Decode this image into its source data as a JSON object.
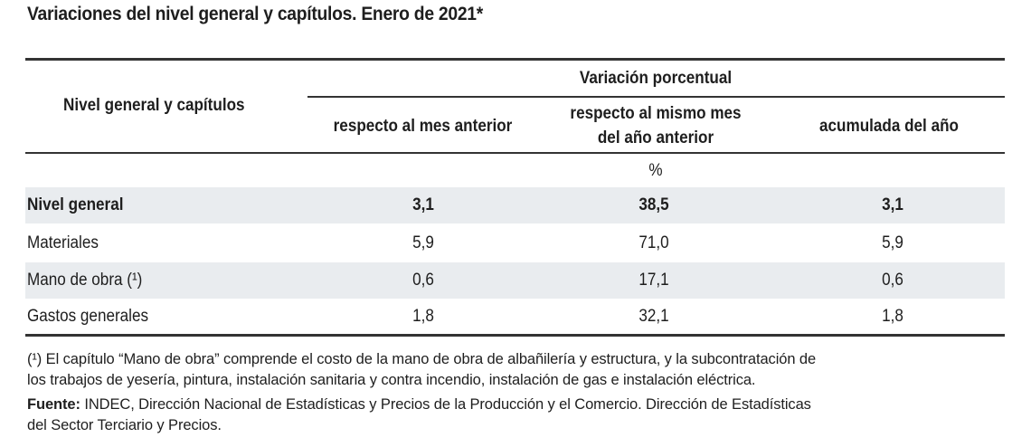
{
  "title": "Variaciones del nivel general y capítulos. Enero de 2021*",
  "header": {
    "row_label": "Nivel general y capítulos",
    "group": "Variación porcentual",
    "col1": "respecto al mes anterior",
    "col2_line1": "respecto al mismo mes",
    "col2_line2": "del año anterior",
    "col3": "acumulada del año",
    "unit": "%"
  },
  "rows": [
    {
      "label": "Nivel general",
      "v1": "3,1",
      "v2": "38,5",
      "v3": "3,1",
      "bold": true
    },
    {
      "label": "Materiales",
      "v1": "5,9",
      "v2": "71,0",
      "v3": "5,9"
    },
    {
      "label": "Mano de obra (¹)",
      "v1": "0,6",
      "v2": "17,1",
      "v3": "0,6"
    },
    {
      "label": "Gastos generales",
      "v1": "1,8",
      "v2": "32,1",
      "v3": "1,8"
    }
  ],
  "footnote": {
    "note_line1": "(¹) El capítulo “Mano de obra” comprende el costo de la mano de obra de albañilería y estructura, y la subcontratación de",
    "note_line2": "los trabajos de yesería, pintura, instalación sanitaria y contra incendio, instalación de gas e instalación eléctrica.",
    "source_label": "Fuente:",
    "source_line1": " INDEC, Dirección Nacional de Estadísticas y Precios de la Producción y el Comercio. Dirección de Estadísticas",
    "source_line2": "del Sector Terciario y Precios."
  }
}
